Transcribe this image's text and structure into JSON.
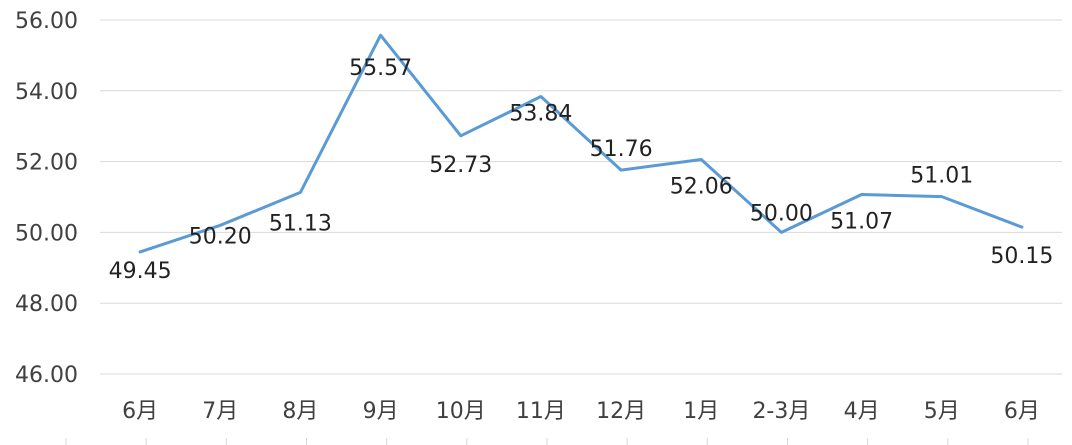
{
  "chart_data": {
    "type": "line",
    "categories": [
      "6月",
      "7月",
      "8月",
      "9月",
      "10月",
      "11月",
      "12月",
      "1月",
      "2-3月",
      "4月",
      "5月",
      "6月"
    ],
    "series": [
      {
        "values": [
          49.45,
          50.2,
          51.13,
          55.57,
          52.73,
          53.84,
          51.76,
          52.06,
          50.0,
          51.07,
          51.01,
          50.15
        ]
      }
    ],
    "data_labels": [
      "49.45",
      "50.20",
      "51.13",
      "55.57",
      "52.73",
      "53.84",
      "51.76",
      "52.06",
      "50.00",
      "51.07",
      "51.01",
      "50.15"
    ],
    "y_ticks": [
      "46.00",
      "48.00",
      "50.00",
      "52.00",
      "54.00",
      "56.00"
    ],
    "ylim": [
      46,
      56
    ],
    "grid": true,
    "legend": "none",
    "line_color": "#5b9bd5"
  }
}
